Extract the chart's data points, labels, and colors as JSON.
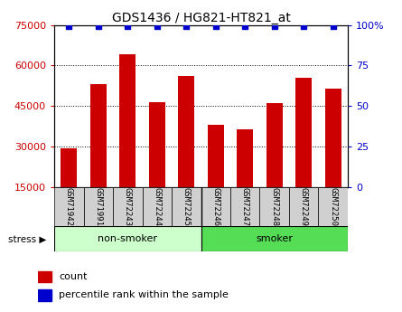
{
  "title": "GDS1436 / HG821-HT821_at",
  "samples": [
    "GSM71942",
    "GSM71991",
    "GSM72243",
    "GSM72244",
    "GSM72245",
    "GSM72246",
    "GSM72247",
    "GSM72248",
    "GSM72249",
    "GSM72250"
  ],
  "counts": [
    29500,
    53000,
    64000,
    46500,
    56000,
    38000,
    36500,
    46000,
    55500,
    51500
  ],
  "percentiles": [
    99,
    99,
    99,
    99,
    99,
    99,
    99,
    99,
    99,
    99
  ],
  "bar_color": "#cc0000",
  "percentile_color": "#0000cc",
  "ylim_left": [
    15000,
    75000
  ],
  "ylim_right": [
    0,
    100
  ],
  "yticks_left": [
    15000,
    30000,
    45000,
    60000,
    75000
  ],
  "yticks_right": [
    0,
    25,
    50,
    75,
    100
  ],
  "nonsmoker_color_light": "#ccffcc",
  "smoker_color": "#55dd55",
  "tick_label_color_left": "#cc0000",
  "tick_label_color_right": "#0000cc",
  "legend_count_color": "#cc0000",
  "legend_pct_color": "#0000cc",
  "bar_width": 0.55,
  "label_gray": "#d0d0d0"
}
